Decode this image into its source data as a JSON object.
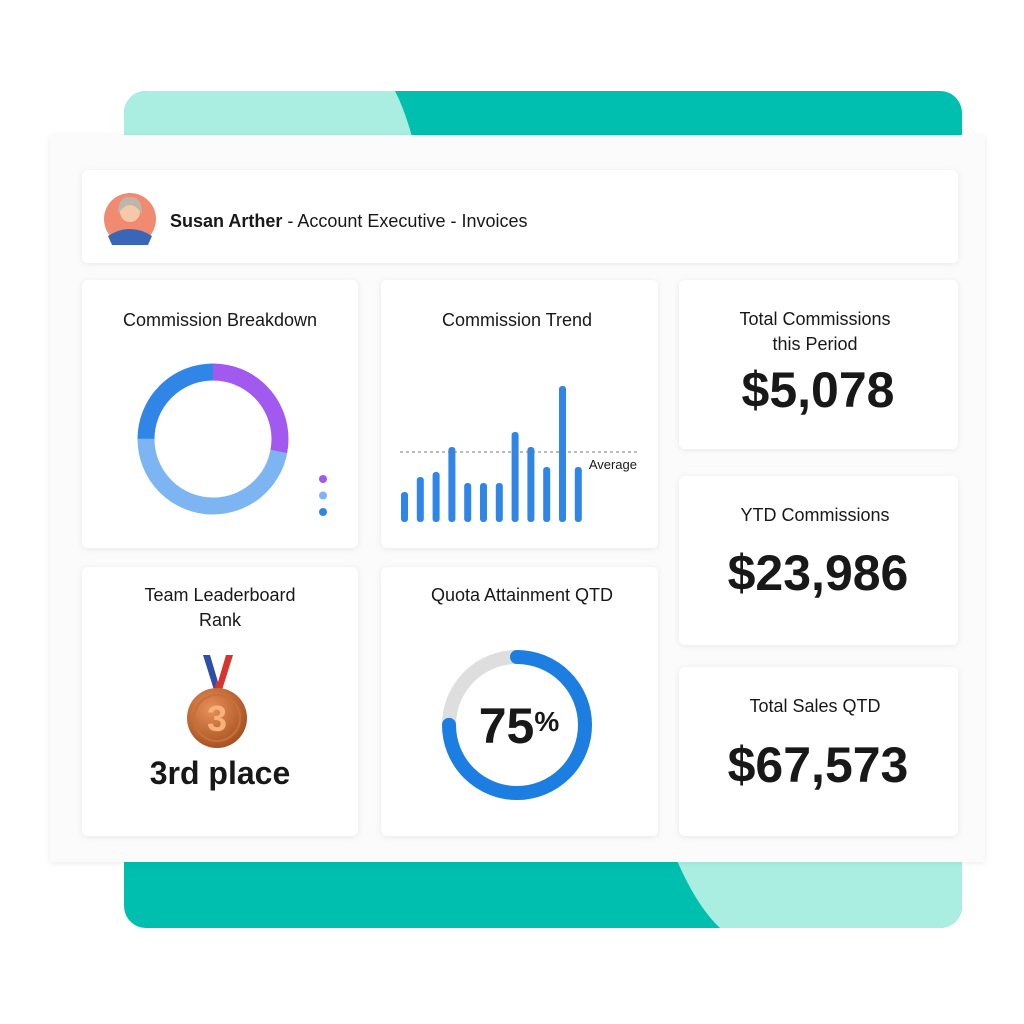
{
  "header": {
    "name": "Susan Arther",
    "detail": "- Account Executive - Invoices"
  },
  "commission_breakdown": {
    "type": "pie",
    "title": "Commission Breakdown",
    "values": [
      28,
      47,
      25
    ],
    "colors": [
      "#a259f0",
      "#7db5f2",
      "#2f86e6"
    ]
  },
  "commission_trend": {
    "type": "bar",
    "title": "Commission Trend",
    "values": [
      30,
      45,
      50,
      75,
      39,
      39,
      39,
      90,
      75,
      55,
      136,
      55
    ],
    "color": "#2f86e6",
    "ylim": [
      0,
      140
    ],
    "average": {
      "label": "Average",
      "value": 70
    }
  },
  "leaderboard": {
    "title_lines": [
      "Team Leaderboard",
      "Rank"
    ],
    "medal": "3",
    "text": "3rd place"
  },
  "quota": {
    "type": "gauge",
    "title": "Quota Attainment QTD",
    "value": 75,
    "unit": "%",
    "range": [
      0,
      100
    ],
    "color": "#1b7ee0"
  },
  "stats": [
    {
      "title_lines": [
        "Total Commissions",
        "this Period"
      ],
      "value": "$5,078"
    },
    {
      "title_lines": [
        "YTD Commissions"
      ],
      "value": "$23,986"
    },
    {
      "title_lines": [
        "Total Sales QTD"
      ],
      "value": "$67,573"
    }
  ]
}
